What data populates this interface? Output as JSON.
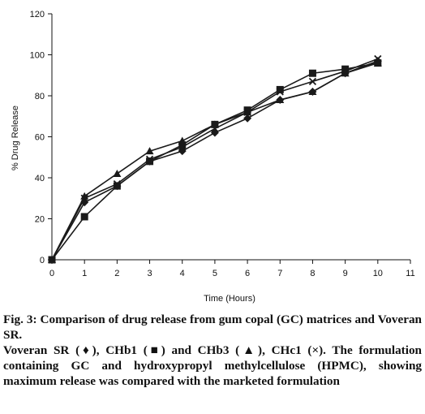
{
  "chart_data": {
    "type": "line",
    "xlabel": "Time (Hours)",
    "ylabel": "% Drug Release",
    "xlim": [
      0,
      11
    ],
    "ylim": [
      0,
      120
    ],
    "xticks": [
      0,
      1,
      2,
      3,
      4,
      5,
      6,
      7,
      8,
      9,
      10,
      11
    ],
    "yticks": [
      0,
      20,
      40,
      60,
      80,
      100,
      120
    ],
    "grid": false,
    "legend": "none",
    "x": [
      0,
      1,
      2,
      3,
      4,
      5,
      6,
      7,
      8,
      9,
      10
    ],
    "series": [
      {
        "name": "Voveran SR",
        "marker": "diamond",
        "values": [
          0,
          28,
          36,
          48,
          53,
          62,
          69,
          78,
          82,
          91,
          97
        ]
      },
      {
        "name": "CHb1",
        "marker": "square",
        "values": [
          0,
          21,
          36,
          48,
          56,
          66,
          73,
          83,
          91,
          93,
          96
        ]
      },
      {
        "name": "CHb3",
        "marker": "triangle",
        "values": [
          0,
          31,
          42,
          53,
          58,
          66,
          72,
          78,
          82,
          91,
          96
        ]
      },
      {
        "name": "CHc1",
        "marker": "cross",
        "values": [
          0,
          30,
          37,
          49,
          55,
          64,
          72,
          82,
          87,
          92,
          98
        ]
      }
    ]
  },
  "caption": {
    "title": "Fig. 3: Comparison of drug release from gum copal (GC) matrices and Voveran SR.",
    "body": "Voveran SR (♦), CHb1 (■) and CHb3 (▲), CHc1 (×). The formulation containing GC and hydroxypropyl methylcellulose (HPMC), showing maximum release was compared with the marketed formulation"
  },
  "colors": {
    "line": "#1a1a1a",
    "axis": "#111111",
    "text": "#111111"
  }
}
